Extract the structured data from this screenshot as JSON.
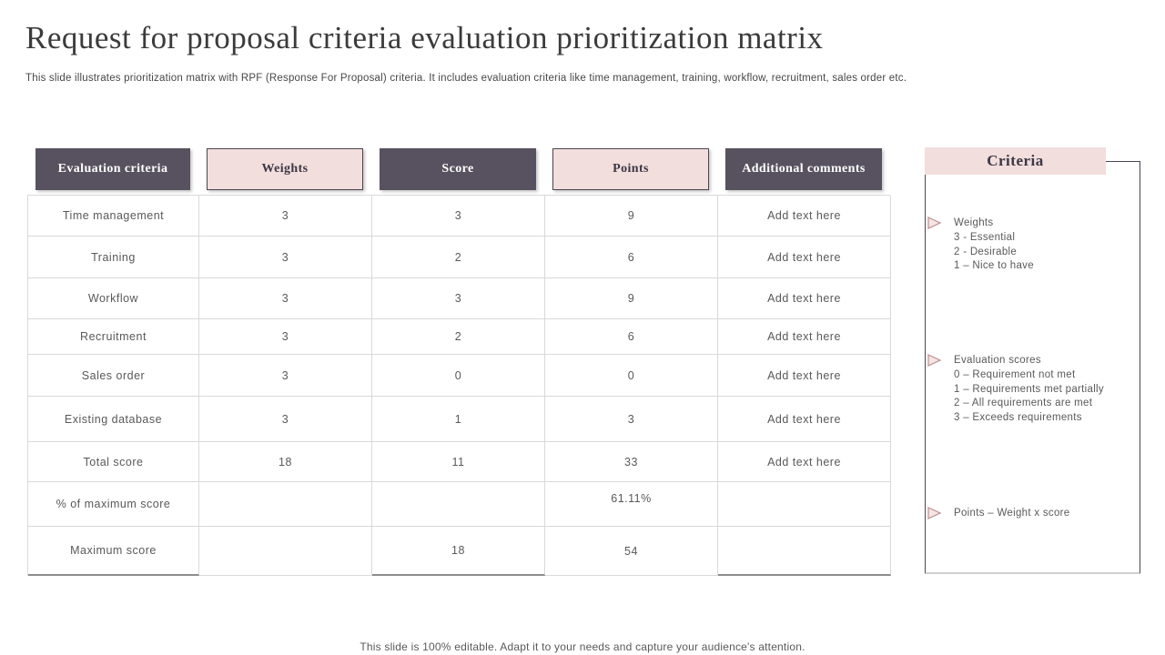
{
  "slide": {
    "title": "Request for proposal criteria evaluation prioritization matrix",
    "subtitle": "This slide illustrates prioritization matrix with RPF (Response For Proposal) criteria. It includes evaluation criteria like time management, training, workflow, recruitment, sales order etc.",
    "footer": "This slide is 100% editable. Adapt it to your needs and capture your audience's attention."
  },
  "table": {
    "columns": [
      "Evaluation criteria",
      "Weights",
      "Score",
      "Points",
      "Additional comments"
    ],
    "rows": [
      {
        "criteria": "Time management",
        "weights": "3",
        "score": "3",
        "points": "9",
        "comments": "Add text here"
      },
      {
        "criteria": "Training",
        "weights": "3",
        "score": "2",
        "points": "6",
        "comments": "Add text here"
      },
      {
        "criteria": "Workflow",
        "weights": "3",
        "score": "3",
        "points": "9",
        "comments": "Add text here"
      },
      {
        "criteria": "Recruitment",
        "weights": "3",
        "score": "2",
        "points": "6",
        "comments": "Add text here"
      },
      {
        "criteria": "Sales order",
        "weights": "3",
        "score": "0",
        "points": "0",
        "comments": "Add text here"
      },
      {
        "criteria": "Existing database",
        "weights": "3",
        "score": "1",
        "points": "3",
        "comments": "Add text here"
      },
      {
        "criteria": "Total score",
        "weights": "18",
        "score": "11",
        "points": "33",
        "comments": "Add text here"
      },
      {
        "criteria": "% of maximum score",
        "weights": "",
        "score": "",
        "points": "61.11%",
        "comments": ""
      },
      {
        "criteria": "Maximum score",
        "weights": "",
        "score": "18",
        "points": "54",
        "comments": ""
      }
    ]
  },
  "criteria_panel": {
    "title": "Criteria",
    "items": [
      {
        "lines": [
          "Weights",
          "3 - Essential",
          "2 - Desirable",
          "1 –  Nice to have"
        ]
      },
      {
        "lines": [
          "Evaluation scores",
          "0 – Requirement not met",
          "1 – Requirements met partially",
          "2 – All requirements are met",
          "3 – Exceeds requirements"
        ]
      },
      {
        "lines": [
          "Points – Weight x score"
        ]
      }
    ]
  },
  "colors": {
    "dark_header": "#585260",
    "pink_header": "#f2dedd",
    "panel_border": "#4a4550",
    "row_border": "#d9d9d9",
    "body_text": "#595959"
  }
}
